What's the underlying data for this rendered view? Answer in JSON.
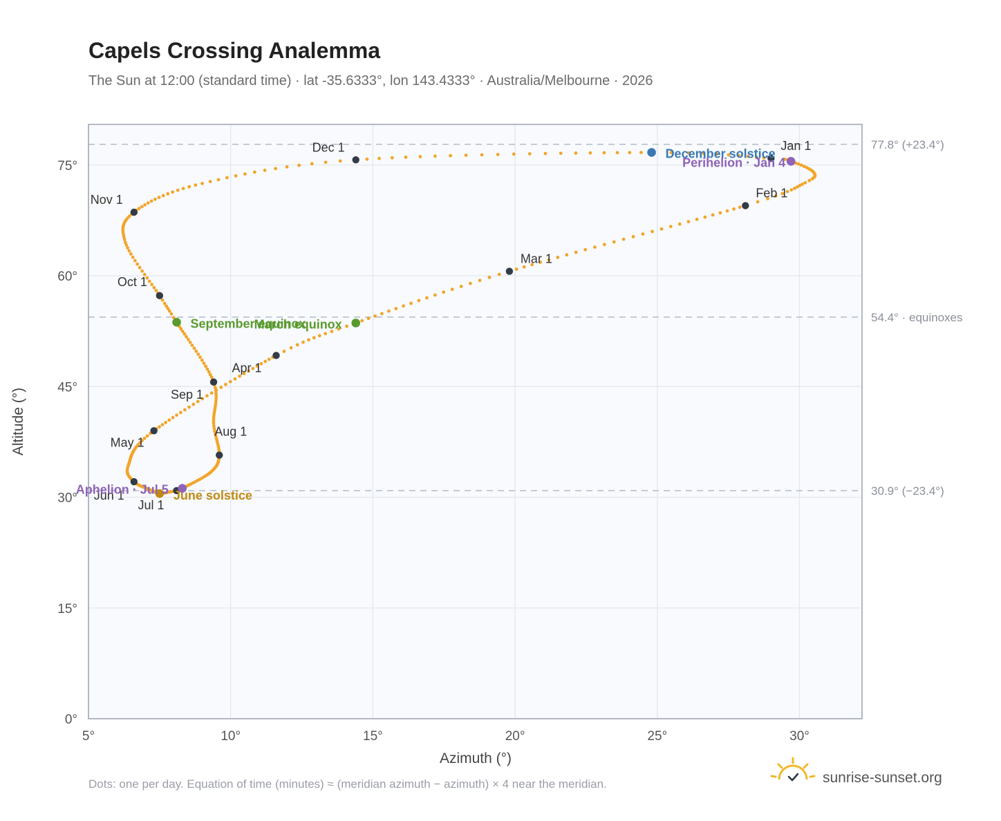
{
  "header": {
    "title": "Capels Crossing Analemma",
    "subtitle": "The Sun at 12:00 (standard time) · lat -35.6333°, lon 143.4333° · Australia/Melbourne · 2026"
  },
  "footer": {
    "note": "Dots: one per day. Equation of time (minutes) ≈ (meridian azimuth − azimuth) × 4 near the meridian.",
    "brand": "sunrise-sunset.org"
  },
  "colors": {
    "path": "#f2a52a",
    "month_dot": "#333b47",
    "equinox": "#5a9a2e",
    "december_solstice": "#3a78b5",
    "june_solstice": "#c08a12",
    "apsis": "#8e63b8",
    "plot_bg": "#f8fafd",
    "grid": "#e3e8ef",
    "frame": "#9aa3af",
    "ref_line": "#b8c0cc"
  },
  "chart_data": {
    "type": "scatter",
    "title": "Capels Crossing Analemma",
    "xlabel": "Azimuth (°)",
    "ylabel": "Altitude (°)",
    "xlim": [
      5,
      32.2
    ],
    "ylim": [
      0,
      80.5
    ],
    "x_ticks": [
      5,
      10,
      15,
      20,
      25,
      30
    ],
    "x_tick_labels": [
      "5°",
      "10°",
      "15°",
      "20°",
      "25°",
      "30°"
    ],
    "y_ticks": [
      0,
      15,
      30,
      45,
      60,
      75
    ],
    "y_tick_labels": [
      "0°",
      "15°",
      "30°",
      "45°",
      "60°",
      "75°"
    ],
    "grid": true,
    "legend": "none",
    "path_anchors": [
      {
        "doy": 0,
        "az": 29.0,
        "alt": 75.9
      },
      {
        "doy": 3,
        "az": 29.7,
        "alt": 75.5
      },
      {
        "doy": 13,
        "az": 30.5,
        "alt": 74.0
      },
      {
        "doy": 20,
        "az": 30.2,
        "alt": 72.6
      },
      {
        "doy": 31,
        "az": 28.1,
        "alt": 69.5
      },
      {
        "doy": 59,
        "az": 19.8,
        "alt": 60.6
      },
      {
        "doy": 78,
        "az": 14.4,
        "alt": 53.6
      },
      {
        "doy": 90,
        "az": 11.6,
        "alt": 49.2
      },
      {
        "doy": 120,
        "az": 7.3,
        "alt": 39.0
      },
      {
        "doy": 140,
        "az": 6.4,
        "alt": 34.3
      },
      {
        "doy": 151,
        "az": 6.6,
        "alt": 32.1
      },
      {
        "doy": 165,
        "az": 7.3,
        "alt": 30.8
      },
      {
        "doy": 172,
        "az": 7.5,
        "alt": 30.5
      },
      {
        "doy": 181,
        "az": 8.1,
        "alt": 30.9
      },
      {
        "doy": 185,
        "az": 8.3,
        "alt": 31.2
      },
      {
        "doy": 200,
        "az": 9.3,
        "alt": 33.4
      },
      {
        "doy": 212,
        "az": 9.6,
        "alt": 35.7
      },
      {
        "doy": 226,
        "az": 9.4,
        "alt": 40.0
      },
      {
        "doy": 243,
        "az": 9.4,
        "alt": 45.6
      },
      {
        "doy": 265,
        "az": 8.1,
        "alt": 53.7
      },
      {
        "doy": 273,
        "az": 7.5,
        "alt": 57.3
      },
      {
        "doy": 290,
        "az": 6.3,
        "alt": 64.5
      },
      {
        "doy": 304,
        "az": 6.6,
        "alt": 68.6
      },
      {
        "doy": 320,
        "az": 9.0,
        "alt": 72.5
      },
      {
        "doy": 334,
        "az": 14.4,
        "alt": 75.7
      },
      {
        "doy": 355,
        "az": 24.8,
        "alt": 76.7
      },
      {
        "doy": 365,
        "az": 29.0,
        "alt": 75.9
      }
    ],
    "month_markers": [
      {
        "label": "Jan 1",
        "az": 29.0,
        "alt": 75.9
      },
      {
        "label": "Feb 1",
        "az": 28.1,
        "alt": 69.5
      },
      {
        "label": "Mar 1",
        "az": 19.8,
        "alt": 60.6
      },
      {
        "label": "Apr 1",
        "az": 11.6,
        "alt": 49.2
      },
      {
        "label": "May 1",
        "az": 7.3,
        "alt": 39.0
      },
      {
        "label": "Jun 1",
        "az": 6.6,
        "alt": 32.1
      },
      {
        "label": "Jul 1",
        "az": 8.1,
        "alt": 30.9
      },
      {
        "label": "Aug 1",
        "az": 9.6,
        "alt": 35.7
      },
      {
        "label": "Sep 1",
        "az": 9.4,
        "alt": 45.6
      },
      {
        "label": "Oct 1",
        "az": 7.5,
        "alt": 57.3
      },
      {
        "label": "Nov 1",
        "az": 6.6,
        "alt": 68.6
      },
      {
        "label": "Dec 1",
        "az": 14.4,
        "alt": 75.7
      }
    ],
    "events": [
      {
        "label": "December solstice",
        "az": 24.8,
        "alt": 76.7,
        "kind": "december_solstice"
      },
      {
        "label": "Perihelion · Jan 4",
        "az": 29.7,
        "alt": 75.5,
        "kind": "apsis"
      },
      {
        "label": "March equinox",
        "az": 14.4,
        "alt": 53.6,
        "kind": "equinox"
      },
      {
        "label": "September equinox",
        "az": 8.1,
        "alt": 53.7,
        "kind": "equinox"
      },
      {
        "label": "June solstice",
        "az": 7.5,
        "alt": 30.5,
        "kind": "june_solstice"
      },
      {
        "label": "Aphelion · Jul 5",
        "az": 8.3,
        "alt": 31.2,
        "kind": "apsis"
      }
    ],
    "reference_lines": [
      {
        "alt": 77.8,
        "label": "77.8° (+23.4°)"
      },
      {
        "alt": 54.4,
        "label": "54.4° · equinoxes"
      },
      {
        "alt": 30.9,
        "label": "30.9° (−23.4°)"
      }
    ]
  }
}
